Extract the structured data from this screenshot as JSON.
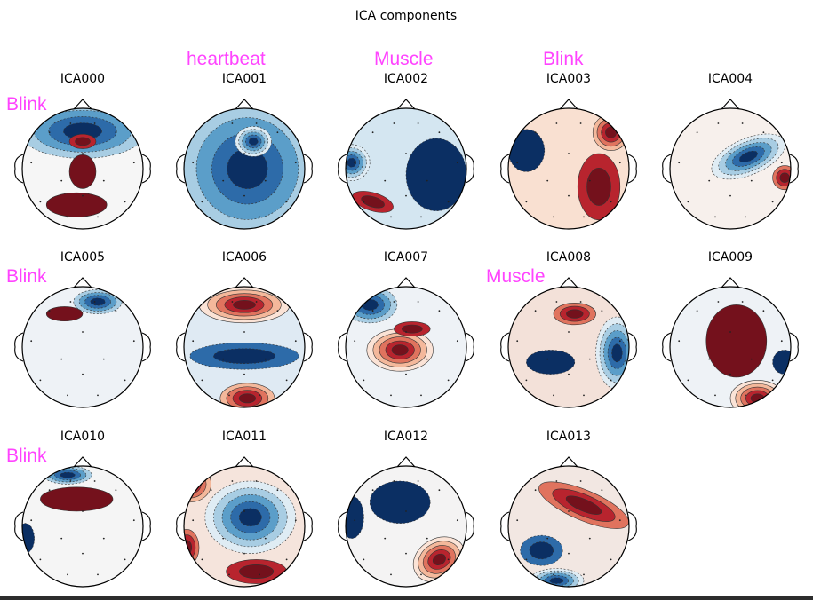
{
  "figure": {
    "title": "ICA components",
    "annotation_color": "#ff44ff",
    "colormap": "RdBu_r",
    "components": [
      {
        "label": "ICA000",
        "annotation": "Blink"
      },
      {
        "label": "ICA001",
        "annotation": "heartbeat"
      },
      {
        "label": "ICA002",
        "annotation": "Muscle"
      },
      {
        "label": "ICA003",
        "annotation": "Blink"
      },
      {
        "label": "ICA004",
        "annotation": ""
      },
      {
        "label": "ICA005",
        "annotation": "Blink"
      },
      {
        "label": "ICA006",
        "annotation": ""
      },
      {
        "label": "ICA007",
        "annotation": ""
      },
      {
        "label": "ICA008",
        "annotation": "Muscle"
      },
      {
        "label": "ICA009",
        "annotation": ""
      },
      {
        "label": "ICA010",
        "annotation": "Blink"
      },
      {
        "label": "ICA011",
        "annotation": ""
      },
      {
        "label": "ICA012",
        "annotation": ""
      },
      {
        "label": "ICA013",
        "annotation": ""
      }
    ]
  }
}
